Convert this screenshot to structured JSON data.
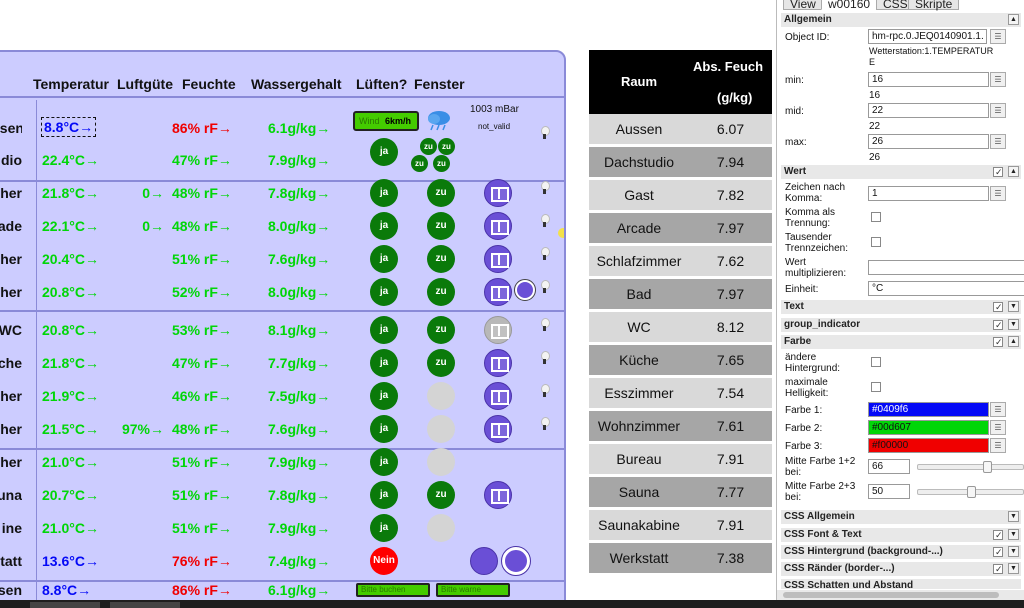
{
  "header": {
    "temperature": "Temperatur",
    "air_quality": "Luftgüte",
    "humidity": "Feuchte",
    "water_content": "Wassergehalt",
    "ventilate": "Lüften?",
    "window": "Fenster"
  },
  "weather": {
    "wind_label": "Wind",
    "wind_value": "6km/h",
    "pressure": "1003 mBar",
    "status": "not_valid",
    "ctrl1": "Bitte buchen",
    "ctrl2": "Bitte warne"
  },
  "rows": [
    {
      "room": "ssen",
      "temp": "8.8°C→",
      "temp_color": "#0409f6",
      "air": "",
      "hum": "86% rF→",
      "hum_color": "#f00000",
      "water": "6.1g/kg→"
    },
    {
      "room": "dio",
      "temp": "22.4°C→",
      "temp_color": "#00d607",
      "air": "",
      "hum": "47% rF→",
      "hum_color": "#00d607",
      "water": "7.9g/kg→"
    },
    {
      "room": "her",
      "temp": "21.8°C→",
      "temp_color": "#00d607",
      "air": "0→",
      "hum": "48% rF→",
      "hum_color": "#00d607",
      "water": "7.8g/kg→"
    },
    {
      "room": "ade",
      "temp": "22.1°C→",
      "temp_color": "#00d607",
      "air": "0→",
      "hum": "48% rF→",
      "hum_color": "#00d607",
      "water": "8.0g/kg→"
    },
    {
      "room": "her",
      "temp": "20.4°C→",
      "temp_color": "#00d607",
      "air": "",
      "hum": "51% rF→",
      "hum_color": "#00d607",
      "water": "7.6g/kg→"
    },
    {
      "room": "her",
      "temp": "20.8°C→",
      "temp_color": "#00d607",
      "air": "",
      "hum": "52% rF→",
      "hum_color": "#00d607",
      "water": "8.0g/kg→"
    },
    {
      "room": "WC",
      "temp": "20.8°C→",
      "temp_color": "#00d607",
      "air": "",
      "hum": "53% rF→",
      "hum_color": "#00d607",
      "water": "8.1g/kg→"
    },
    {
      "room": "che",
      "temp": "21.8°C→",
      "temp_color": "#00d607",
      "air": "",
      "hum": "47% rF→",
      "hum_color": "#00d607",
      "water": "7.7g/kg→"
    },
    {
      "room": "her",
      "temp": "21.9°C→",
      "temp_color": "#00d607",
      "air": "",
      "hum": "46% rF→",
      "hum_color": "#00d607",
      "water": "7.5g/kg→"
    },
    {
      "room": "her",
      "temp": "21.5°C→",
      "temp_color": "#00d607",
      "air": "97%→",
      "hum": "48% rF→",
      "hum_color": "#00d607",
      "water": "7.6g/kg→"
    },
    {
      "room": "her",
      "temp": "21.0°C→",
      "temp_color": "#00d607",
      "air": "",
      "hum": "51% rF→",
      "hum_color": "#00d607",
      "water": "7.9g/kg→"
    },
    {
      "room": "una",
      "temp": "20.7°C→",
      "temp_color": "#00d607",
      "air": "",
      "hum": "51% rF→",
      "hum_color": "#00d607",
      "water": "7.8g/kg→"
    },
    {
      "room": "ine",
      "temp": "21.0°C→",
      "temp_color": "#00d607",
      "air": "",
      "hum": "51% rF→",
      "hum_color": "#00d607",
      "water": "7.9g/kg→"
    },
    {
      "room": "tatt",
      "temp": "13.6°C→",
      "temp_color": "#0409f6",
      "air": "",
      "hum": "76% rF→",
      "hum_color": "#f00000",
      "water": "7.4g/kg→"
    },
    {
      "room": "sen",
      "temp": "8.8°C→",
      "temp_color": "#0409f6",
      "air": "",
      "hum": "86% rF→",
      "hum_color": "#f00000",
      "water": "6.1g/kg→"
    }
  ],
  "labels": {
    "ja": "ja",
    "zu": "zu",
    "nein": "Nein"
  },
  "table": {
    "col1": "Raum",
    "col2": "Abs. Feuch",
    "col2_unit": "(g/kg)",
    "rows": [
      {
        "room": "Aussen",
        "value": "6.07"
      },
      {
        "room": "Dachstudio",
        "value": "7.94"
      },
      {
        "room": "Gast",
        "value": "7.82"
      },
      {
        "room": "Arcade",
        "value": "7.97"
      },
      {
        "room": "Schlafzimmer",
        "value": "7.62"
      },
      {
        "room": "Bad",
        "value": "7.97"
      },
      {
        "room": "WC",
        "value": "8.12"
      },
      {
        "room": "Küche",
        "value": "7.65"
      },
      {
        "room": "Esszimmer",
        "value": "7.54"
      },
      {
        "room": "Wohnzimmer",
        "value": "7.61"
      },
      {
        "room": "Bureau",
        "value": "7.91"
      },
      {
        "room": "Sauna",
        "value": "7.77"
      },
      {
        "room": "Saunakabine",
        "value": "7.91"
      },
      {
        "room": "Werkstatt",
        "value": "7.38"
      }
    ]
  },
  "editor": {
    "tabs": [
      "View",
      "w00160",
      "CSS",
      "Skripte"
    ],
    "sec_general": "Allgemein",
    "object_id_label": "Object ID:",
    "object_id": "hm-rpc.0.JEQ0140901.1.",
    "object_desc": "Wetterstation:1.TEMPERATURE",
    "min_label": "min:",
    "min": "16",
    "mid_label": "mid:",
    "mid": "22",
    "max_label": "max:",
    "max": "26",
    "sec_value": "Wert",
    "decimals_label": "Zeichen nach Komma:",
    "decimals": "1",
    "comma_label": "Komma als Trennung:",
    "thousand_label": "Tausender Trennzeichen:",
    "multiply_label": "Wert multiplizieren:",
    "multiply": "",
    "unit_label": "Einheit:",
    "unit": "°C",
    "sec_text": "Text",
    "sec_group": "group_indicator",
    "sec_color": "Farbe",
    "change_bg_label": "ändere Hintergrund:",
    "max_bright_label": "maximale Helligkeit:",
    "color1_label": "Farbe 1:",
    "color1": "#0409f6",
    "color2_label": "Farbe 2:",
    "color2": "#00d607",
    "color3_label": "Farbe 3:",
    "color3": "#f00000",
    "mid12_label": "Mitte Farbe 1+2 bei:",
    "mid12": "66",
    "mid23_label": "Mitte Farbe 2+3 bei:",
    "mid23": "50",
    "sec_css_general": "CSS Allgemein",
    "sec_css_font": "CSS Font & Text",
    "sec_css_bg": "CSS Hintergrund (background-...)",
    "sec_css_border": "CSS Ränder (border-...)",
    "sec_css_shadow": "CSS Schatten und Abstand"
  }
}
